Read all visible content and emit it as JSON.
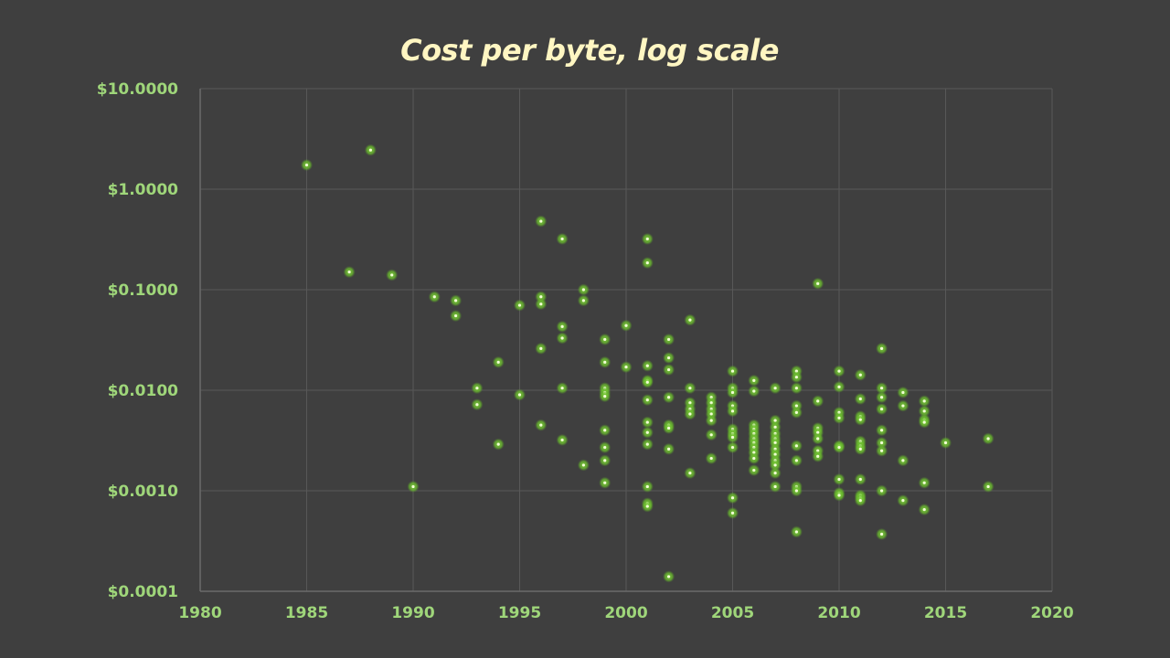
{
  "colors": {
    "background": "#3f3f3f",
    "title": "#fff6c2",
    "tick_label": "#9fd67a",
    "grid": "#585858",
    "axis": "#6b6b6b",
    "point_glow": "#7fce3c",
    "point_core": "#f2ffd6"
  },
  "chart_data": {
    "type": "scatter",
    "title": "Cost per byte, log scale",
    "xlabel": "",
    "ylabel": "",
    "xlim": [
      1980,
      2020
    ],
    "ylim": [
      0.0001,
      10
    ],
    "y_scale": "log",
    "grid": true,
    "x_ticks": [
      1980,
      1985,
      1990,
      1995,
      2000,
      2005,
      2010,
      2015,
      2020
    ],
    "x_tick_labels": [
      "1980",
      "1985",
      "1990",
      "1995",
      "2000",
      "2005",
      "2010",
      "2015",
      "2020"
    ],
    "y_ticks": [
      0.0001,
      0.001,
      0.01,
      0.1,
      1,
      10
    ],
    "y_tick_labels": [
      "$0.0001",
      "$0.0010",
      "$0.0100",
      "$0.1000",
      "$1.0000",
      "$10.0000"
    ],
    "points": [
      [
        1985,
        1.74
      ],
      [
        1987,
        0.15
      ],
      [
        1988,
        2.45
      ],
      [
        1989,
        0.14
      ],
      [
        1990,
        0.0011
      ],
      [
        1991,
        0.085
      ],
      [
        1992,
        0.078
      ],
      [
        1992,
        0.055
      ],
      [
        1993,
        0.0105
      ],
      [
        1993,
        0.0072
      ],
      [
        1994,
        0.019
      ],
      [
        1994,
        0.0029
      ],
      [
        1995,
        0.07
      ],
      [
        1995,
        0.009
      ],
      [
        1996,
        0.48
      ],
      [
        1996,
        0.085
      ],
      [
        1996,
        0.072
      ],
      [
        1996,
        0.026
      ],
      [
        1996,
        0.0045
      ],
      [
        1997,
        0.32
      ],
      [
        1997,
        0.043
      ],
      [
        1997,
        0.033
      ],
      [
        1997,
        0.0105
      ],
      [
        1997,
        0.0032
      ],
      [
        1998,
        0.1
      ],
      [
        1998,
        0.078
      ],
      [
        1998,
        0.0018
      ],
      [
        1999,
        0.032
      ],
      [
        1999,
        0.019
      ],
      [
        1999,
        0.0105
      ],
      [
        1999,
        0.0095
      ],
      [
        1999,
        0.0087
      ],
      [
        1999,
        0.004
      ],
      [
        1999,
        0.0027
      ],
      [
        1999,
        0.002
      ],
      [
        1999,
        0.0012
      ],
      [
        2000,
        0.044
      ],
      [
        2000,
        0.017
      ],
      [
        2001,
        0.32
      ],
      [
        2001,
        0.185
      ],
      [
        2001,
        0.0175
      ],
      [
        2001,
        0.0125
      ],
      [
        2001,
        0.012
      ],
      [
        2001,
        0.008
      ],
      [
        2001,
        0.0048
      ],
      [
        2001,
        0.0038
      ],
      [
        2001,
        0.0029
      ],
      [
        2001,
        0.0011
      ],
      [
        2001,
        0.00075
      ],
      [
        2001,
        0.0007
      ],
      [
        2002,
        0.032
      ],
      [
        2002,
        0.021
      ],
      [
        2002,
        0.016
      ],
      [
        2002,
        0.0085
      ],
      [
        2002,
        0.0045
      ],
      [
        2002,
        0.0042
      ],
      [
        2002,
        0.0026
      ],
      [
        2002,
        0.00014
      ],
      [
        2003,
        0.05
      ],
      [
        2003,
        0.0105
      ],
      [
        2003,
        0.0075
      ],
      [
        2003,
        0.0065
      ],
      [
        2003,
        0.0058
      ],
      [
        2003,
        0.0015
      ],
      [
        2004,
        0.0085
      ],
      [
        2004,
        0.0075
      ],
      [
        2004,
        0.0065
      ],
      [
        2004,
        0.0058
      ],
      [
        2004,
        0.005
      ],
      [
        2004,
        0.0036
      ],
      [
        2004,
        0.0021
      ],
      [
        2005,
        0.0155
      ],
      [
        2005,
        0.0105
      ],
      [
        2005,
        0.0095
      ],
      [
        2005,
        0.007
      ],
      [
        2005,
        0.0062
      ],
      [
        2005,
        0.0041
      ],
      [
        2005,
        0.0037
      ],
      [
        2005,
        0.0034
      ],
      [
        2005,
        0.0027
      ],
      [
        2005,
        0.00085
      ],
      [
        2005,
        0.0006
      ],
      [
        2006,
        0.0125
      ],
      [
        2006,
        0.0098
      ],
      [
        2006,
        0.0045
      ],
      [
        2006,
        0.0041
      ],
      [
        2006,
        0.0037
      ],
      [
        2006,
        0.0033
      ],
      [
        2006,
        0.003
      ],
      [
        2006,
        0.0027
      ],
      [
        2006,
        0.0024
      ],
      [
        2006,
        0.0021
      ],
      [
        2006,
        0.0016
      ],
      [
        2007,
        0.0105
      ],
      [
        2007,
        0.005
      ],
      [
        2007,
        0.0043
      ],
      [
        2007,
        0.0037
      ],
      [
        2007,
        0.0033
      ],
      [
        2007,
        0.003
      ],
      [
        2007,
        0.0026
      ],
      [
        2007,
        0.0023
      ],
      [
        2007,
        0.002
      ],
      [
        2007,
        0.0018
      ],
      [
        2007,
        0.0015
      ],
      [
        2007,
        0.0011
      ],
      [
        2008,
        0.0155
      ],
      [
        2008,
        0.0135
      ],
      [
        2008,
        0.0105
      ],
      [
        2008,
        0.007
      ],
      [
        2008,
        0.006
      ],
      [
        2008,
        0.0028
      ],
      [
        2008,
        0.002
      ],
      [
        2008,
        0.0011
      ],
      [
        2008,
        0.001
      ],
      [
        2008,
        0.00039
      ],
      [
        2009,
        0.115
      ],
      [
        2009,
        0.0078
      ],
      [
        2009,
        0.0042
      ],
      [
        2009,
        0.0038
      ],
      [
        2009,
        0.0033
      ],
      [
        2009,
        0.0025
      ],
      [
        2009,
        0.0022
      ],
      [
        2010,
        0.0155
      ],
      [
        2010,
        0.0108
      ],
      [
        2010,
        0.006
      ],
      [
        2010,
        0.0053
      ],
      [
        2010,
        0.0028
      ],
      [
        2010,
        0.0027
      ],
      [
        2010,
        0.0013
      ],
      [
        2010,
        0.00095
      ],
      [
        2010,
        0.0009
      ],
      [
        2011,
        0.0142
      ],
      [
        2011,
        0.0082
      ],
      [
        2011,
        0.0055
      ],
      [
        2011,
        0.0051
      ],
      [
        2011,
        0.0031
      ],
      [
        2011,
        0.0028
      ],
      [
        2011,
        0.0026
      ],
      [
        2011,
        0.0013
      ],
      [
        2011,
        0.0009
      ],
      [
        2011,
        0.00085
      ],
      [
        2011,
        0.0008
      ],
      [
        2012,
        0.026
      ],
      [
        2012,
        0.0105
      ],
      [
        2012,
        0.0085
      ],
      [
        2012,
        0.0065
      ],
      [
        2012,
        0.004
      ],
      [
        2012,
        0.003
      ],
      [
        2012,
        0.0025
      ],
      [
        2012,
        0.001
      ],
      [
        2012,
        0.00037
      ],
      [
        2013,
        0.0095
      ],
      [
        2013,
        0.007
      ],
      [
        2013,
        0.002
      ],
      [
        2013,
        0.0008
      ],
      [
        2014,
        0.0078
      ],
      [
        2014,
        0.0062
      ],
      [
        2014,
        0.0051
      ],
      [
        2014,
        0.0048
      ],
      [
        2014,
        0.0012
      ],
      [
        2014,
        0.00065
      ],
      [
        2015,
        0.003
      ],
      [
        2017,
        0.0033
      ],
      [
        2017,
        0.0011
      ]
    ]
  }
}
